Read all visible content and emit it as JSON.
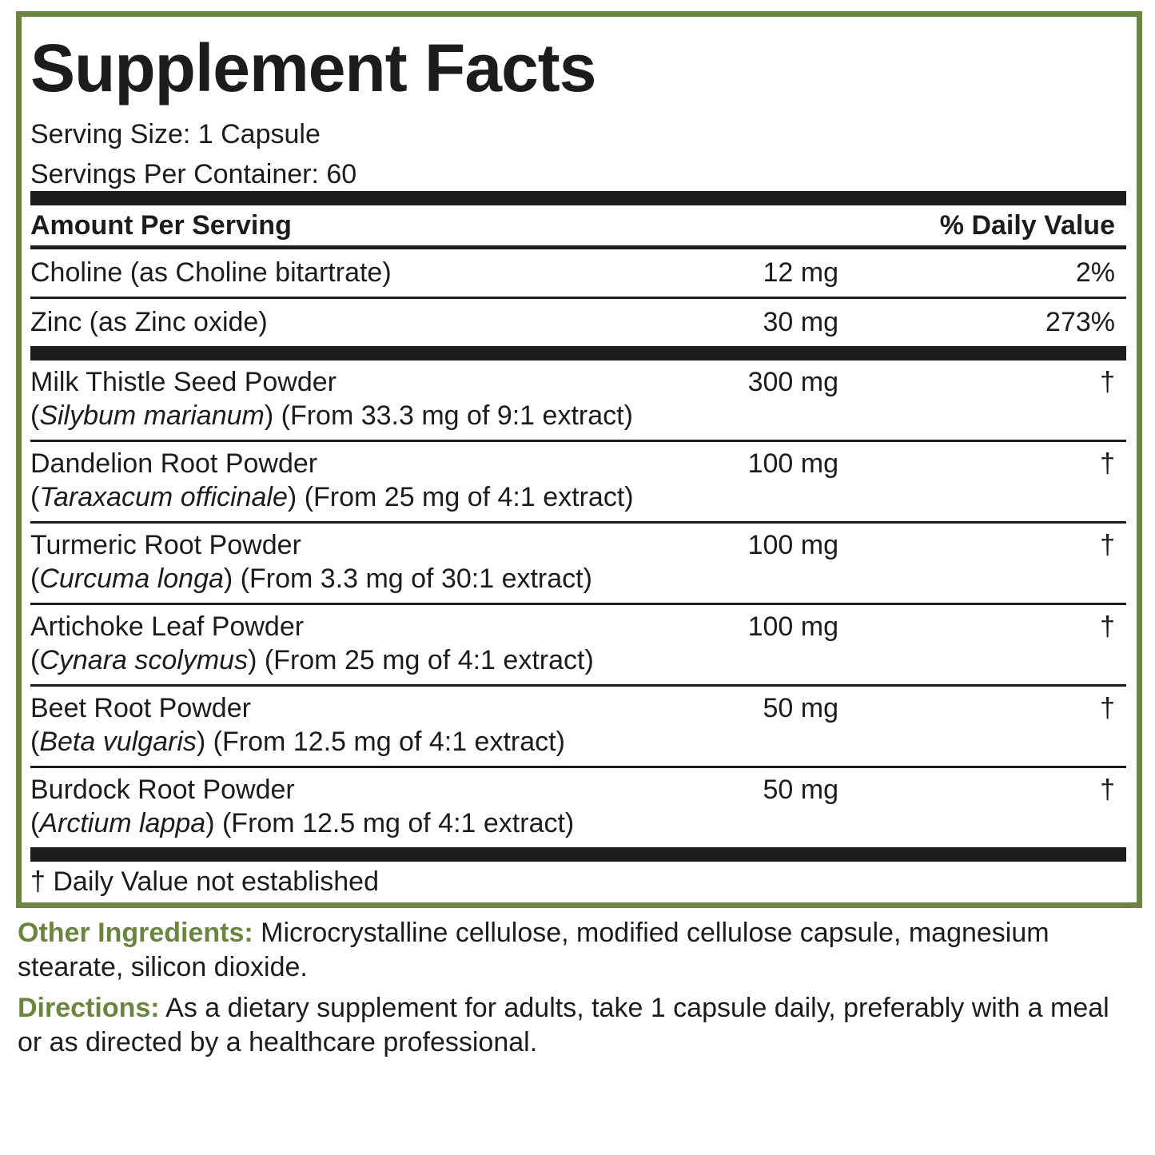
{
  "title": "Supplement Facts",
  "serving_size": "Serving Size: 1 Capsule",
  "servings_per_container": "Servings Per Container: 60",
  "header": {
    "amount": "Amount Per Serving",
    "dv": "% Daily Value"
  },
  "nutrients": [
    {
      "name": "Choline (as Choline bitartrate)",
      "amount": "12 mg",
      "dv": "2%"
    },
    {
      "name": "Zinc (as Zinc oxide)",
      "amount": "30 mg",
      "dv": "273%"
    }
  ],
  "herbs": [
    {
      "name": "Milk Thistle Seed Powder",
      "latin": "Silybum marianum",
      "extract": "(From 33.3 mg of 9:1 extract)",
      "amount": "300 mg",
      "dv": "†"
    },
    {
      "name": "Dandelion Root Powder",
      "latin": "Taraxacum officinale",
      "extract": "(From 25 mg of 4:1 extract)",
      "amount": "100 mg",
      "dv": "†"
    },
    {
      "name": "Turmeric Root Powder",
      "latin": "Curcuma longa",
      "extract": "(From 3.3 mg of 30:1 extract)",
      "amount": "100 mg",
      "dv": "†"
    },
    {
      "name": "Artichoke Leaf Powder",
      "latin": "Cynara scolymus",
      "extract": "(From 25 mg of 4:1 extract)",
      "amount": "100 mg",
      "dv": "†"
    },
    {
      "name": "Beet Root Powder",
      "latin": "Beta vulgaris",
      "extract": "(From 12.5 mg of 4:1 extract)",
      "amount": "50 mg",
      "dv": "†"
    },
    {
      "name": "Burdock Root Powder",
      "latin": "Arctium lappa",
      "extract": "(From 12.5 mg of 4:1 extract)",
      "amount": "50 mg",
      "dv": "†"
    }
  ],
  "footnote": "† Daily Value not established",
  "other_ingredients": {
    "label": "Other Ingredients:",
    "text": " Microcrystalline cellulose, modified cellulose capsule, magnesium stearate, silicon dioxide."
  },
  "directions": {
    "label": "Directions:",
    "text": " As a dietary supplement for adults, take 1 capsule daily, preferably with a meal or as directed by a healthcare professional."
  },
  "colors": {
    "accent": "#6b8540",
    "text": "#1c1c1c"
  }
}
